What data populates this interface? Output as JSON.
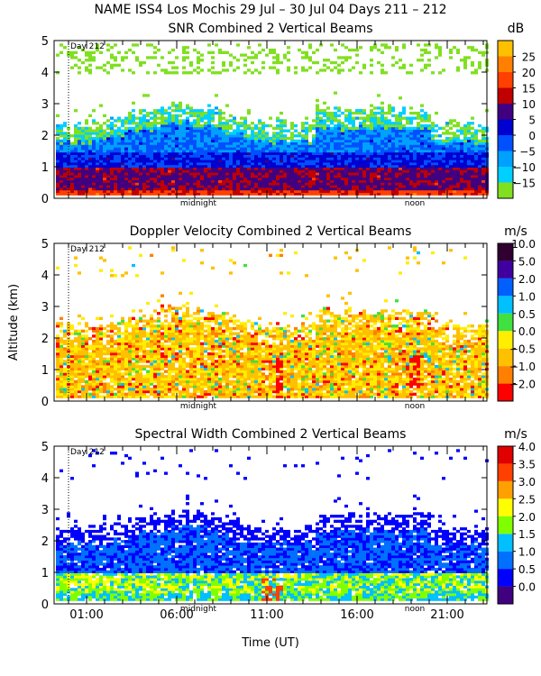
{
  "page": {
    "title": "NAME ISS4 Los Mochis  29 Jul – 30 Jul 04 Days 211 – 212"
  },
  "colors": {
    "snr": [
      "#80e020",
      "#00d0ff",
      "#00a0ff",
      "#0050ff",
      "#0000d0",
      "#400080",
      "#c00000",
      "#ff4000",
      "#ff8000",
      "#ffc000"
    ],
    "vel": [
      "#ff0000",
      "#ff8000",
      "#ffc000",
      "#ffee00",
      "#40e040",
      "#00c0ff",
      "#0060ff",
      "#4000a0",
      "#300030"
    ],
    "wid": [
      "#400080",
      "#0000ff",
      "#0070ff",
      "#00c0ff",
      "#80ff00",
      "#ffff00",
      "#ffa000",
      "#ff4000",
      "#e00000"
    ]
  },
  "chart_data": [
    {
      "type": "heatmap",
      "title": "SNR Combined 2 Vertical Beams",
      "unit": "dB",
      "ylabel": "",
      "xlabel": "",
      "x_unit": "hour UT",
      "xlim": [
        -0.8,
        23.2
      ],
      "ylim": [
        0,
        5
      ],
      "yticks": [
        "0",
        "1",
        "2",
        "3",
        "4",
        "5"
      ],
      "xtick_labels": [],
      "xtick_hours": [
        1,
        6,
        11,
        16,
        21
      ],
      "day_marker": {
        "hour": 0,
        "label": "Day 212"
      },
      "annotations": [
        {
          "text": "midnight",
          "hour": 7.2
        },
        {
          "text": "noon",
          "hour": 19.2
        }
      ],
      "scale": {
        "labels": [
          "−15",
          "−10",
          "−5",
          "0",
          "5",
          "10",
          "15",
          "20",
          "25"
        ],
        "color_key": "snr"
      },
      "field": "snr"
    },
    {
      "type": "heatmap",
      "title": "Doppler Velocity Combined 2 Vertical Beams",
      "unit": "m/s",
      "ylabel": "Altitude (km)",
      "xlabel": "",
      "x_unit": "hour UT",
      "xlim": [
        -0.8,
        23.2
      ],
      "ylim": [
        0,
        5
      ],
      "yticks": [
        "0",
        "1",
        "2",
        "3",
        "4",
        "5"
      ],
      "xtick_labels": [],
      "xtick_hours": [
        1,
        6,
        11,
        16,
        21
      ],
      "day_marker": {
        "hour": 0,
        "label": "Day 212"
      },
      "annotations": [
        {
          "text": "midnight",
          "hour": 7.2
        },
        {
          "text": "noon",
          "hour": 19.2
        }
      ],
      "scale": {
        "labels": [
          "−2.0",
          "−1.0",
          "−0.5",
          "0.0",
          "0.5",
          "1.0",
          "2.0",
          "5.0",
          "10.0"
        ],
        "color_key": "vel"
      },
      "field": "vel"
    },
    {
      "type": "heatmap",
      "title": "Spectral Width Combined 2 Vertical Beams",
      "unit": "m/s",
      "ylabel": "",
      "xlabel": "Time (UT)",
      "x_unit": "hour UT",
      "xlim": [
        -0.8,
        23.2
      ],
      "ylim": [
        0,
        5
      ],
      "yticks": [
        "0",
        "1",
        "2",
        "3",
        "4",
        "5"
      ],
      "xtick_labels": [
        "01:00",
        "06:00",
        "11:00",
        "16:00",
        "21:00"
      ],
      "xtick_hours": [
        1,
        6,
        11,
        16,
        21
      ],
      "day_marker": {
        "hour": 0,
        "label": "Day 212"
      },
      "annotations": [
        {
          "text": "midnight",
          "hour": 7.2
        },
        {
          "text": "noon",
          "hour": 19.2
        }
      ],
      "scale": {
        "labels": [
          "0.0",
          "0.5",
          "1.0",
          "1.5",
          "2.0",
          "2.5",
          "3.0",
          "3.5",
          "4.0"
        ],
        "color_key": "wid"
      },
      "field": "wid"
    }
  ]
}
